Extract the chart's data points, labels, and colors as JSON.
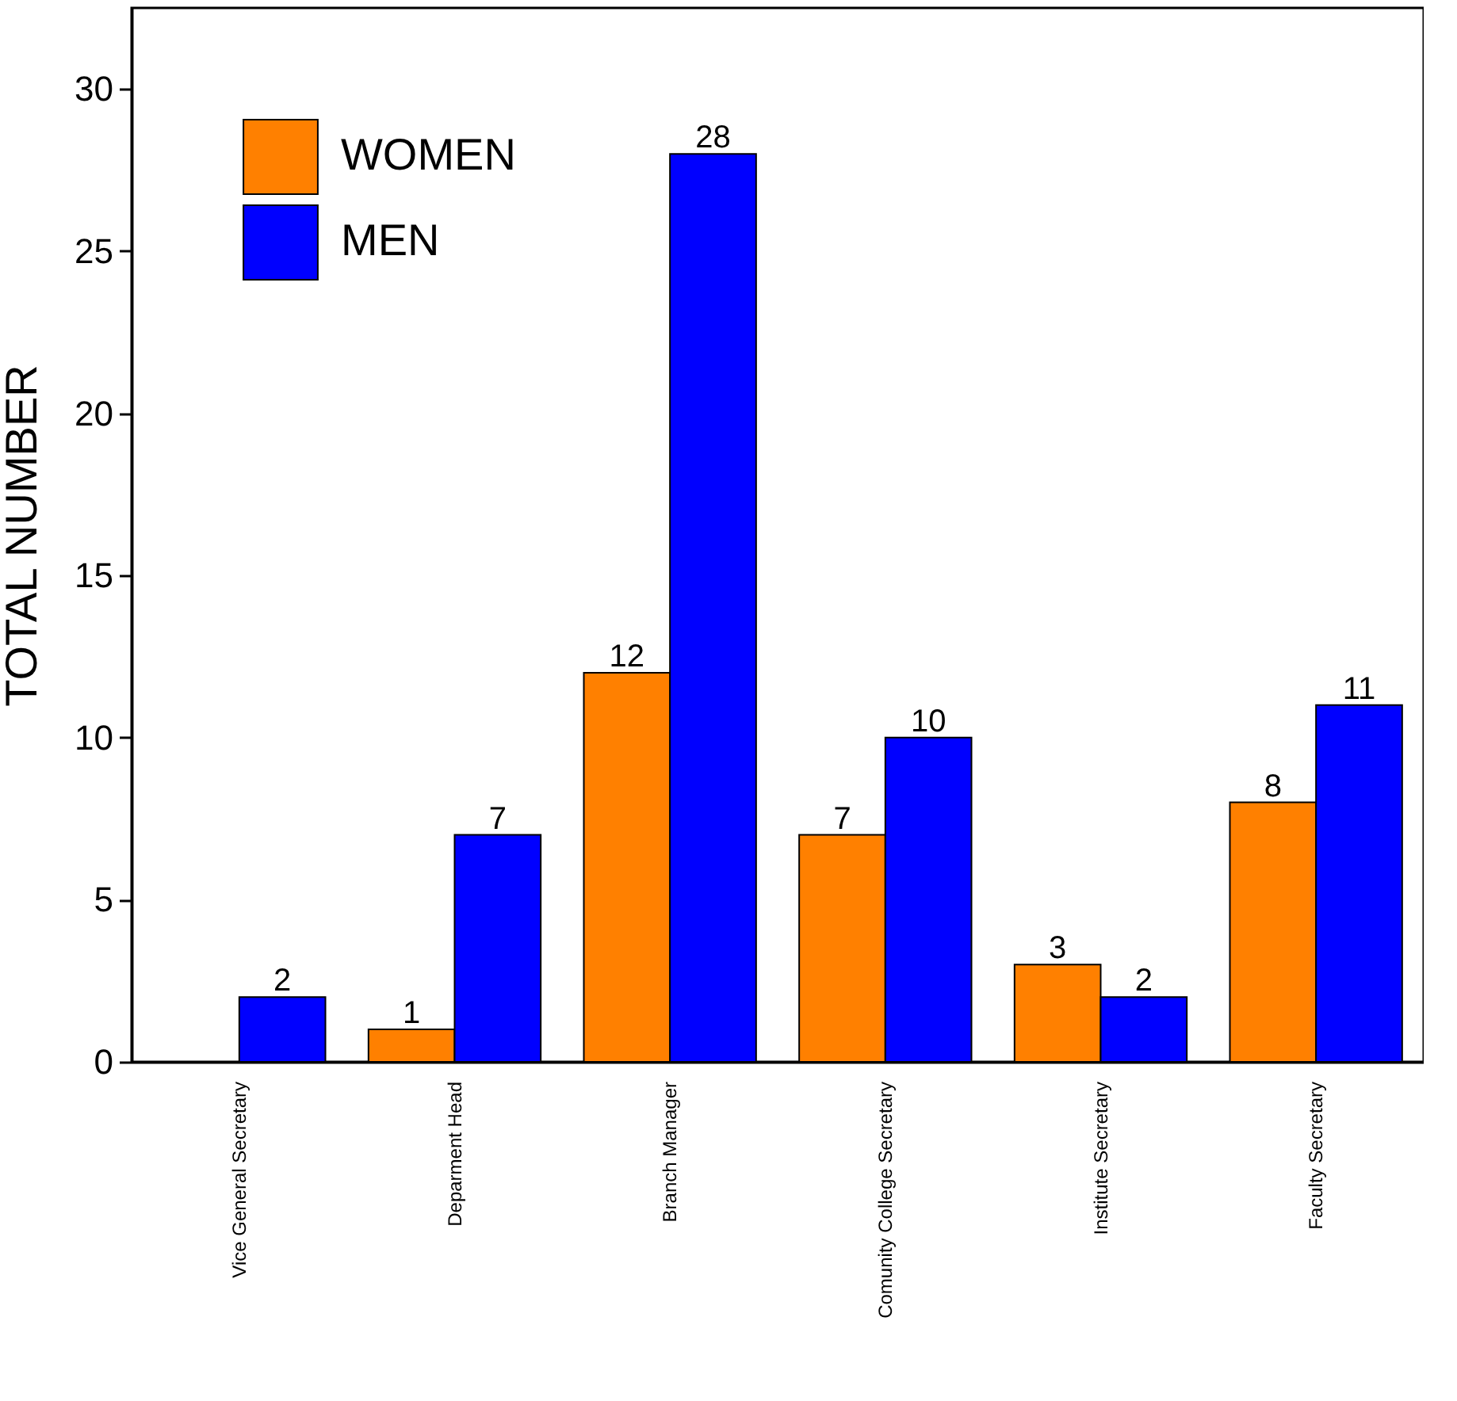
{
  "chart_data": {
    "type": "bar",
    "ylabel": "TOTAL NUMBER",
    "categories": [
      "Vice General Secretary",
      "Deparment Head",
      "Branch Manager",
      "Comunity College Secretary",
      "Institute Secretary",
      "Faculty Secretary"
    ],
    "series": [
      {
        "name": "WOMEN",
        "color": "#ff8000",
        "values": [
          null,
          1,
          12,
          7,
          3,
          8
        ]
      },
      {
        "name": "MEN",
        "color": "#0000ff",
        "values": [
          2,
          7,
          28,
          10,
          2,
          11
        ]
      }
    ],
    "ylim": [
      0,
      32.5
    ],
    "yticks": [
      0,
      5,
      10,
      15,
      20,
      25,
      30
    ],
    "grid": false,
    "legend": "top left",
    "data_labels": true
  }
}
